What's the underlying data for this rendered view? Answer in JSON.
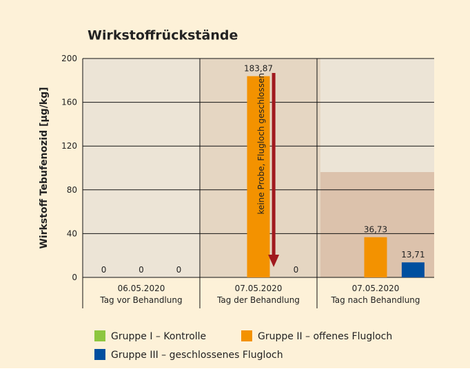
{
  "chart_data": {
    "type": "bar",
    "title": "Wirkstoffrückstände",
    "y_label": "Wirkstoff Tebufenozid [µg/kg]",
    "categories": [
      "06.05.2020",
      "07.05.2020",
      "07.05.2020"
    ],
    "category_sublabels": [
      "Tag vor Behandlung",
      "Tag der Behandlung",
      "Tag nach Behandlung"
    ],
    "series": [
      {
        "name": "Gruppe I – Kontrolle",
        "color": "#8dc63f",
        "values": [
          0,
          null,
          null
        ],
        "value_labels": [
          "0",
          null,
          null
        ]
      },
      {
        "name": "Gruppe II – offenes Flugloch",
        "color": "#f39200",
        "values": [
          0,
          183.87,
          36.73
        ],
        "value_labels": [
          "0",
          "183,87",
          "36,73"
        ]
      },
      {
        "name": "Gruppe III – geschlossenes Flugloch",
        "color": "#004f9f",
        "values": [
          0,
          0,
          13.71
        ],
        "value_labels": [
          "0",
          "0",
          "13,71"
        ]
      }
    ],
    "annotation": "keine Probe, Flugloch geschlossen",
    "ylim": [
      0,
      200
    ],
    "yticks": [
      0,
      40,
      80,
      120,
      160,
      200
    ],
    "grid": true
  }
}
